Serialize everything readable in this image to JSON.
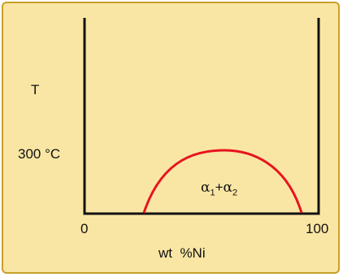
{
  "diagram": {
    "y_label": "T",
    "temperature_value": "300",
    "temperature_unit": "°C",
    "x_min_label": "0",
    "x_max_label": "100",
    "x_axis_label": "wt  %Ni",
    "region_label": {
      "alpha": "α",
      "sub1": "1",
      "plus": "+",
      "sub2": "2"
    }
  },
  "colors": {
    "background": "#fae6a4",
    "border": "#c8a028",
    "axes": "#111111",
    "curve": "#e8141e"
  }
}
